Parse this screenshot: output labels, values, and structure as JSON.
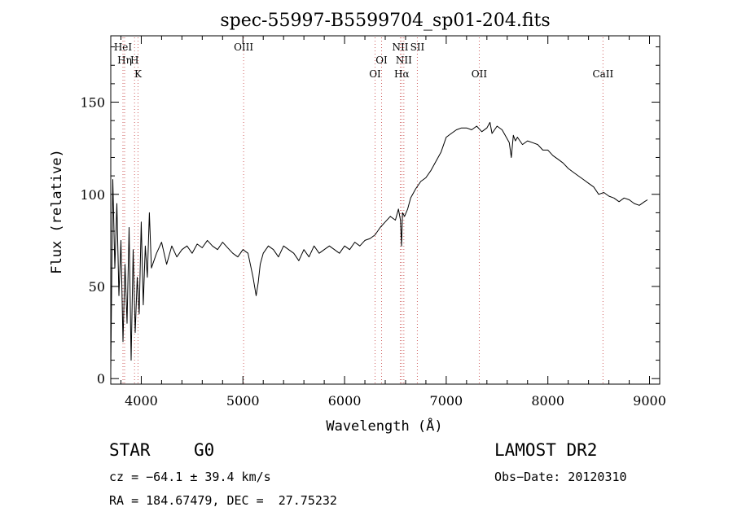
{
  "chart_data": {
    "type": "line",
    "title": "spec-55997-B5599704_sp01-204.fits",
    "xlabel": "Wavelength (Å)",
    "ylabel": "Flux (relative)",
    "xlim": [
      3700,
      9100
    ],
    "ylim": [
      -3,
      186
    ],
    "xticks": [
      4000,
      5000,
      6000,
      7000,
      8000,
      9000
    ],
    "yticks": [
      0,
      50,
      100,
      150
    ],
    "grid": false,
    "line_color": "#000000",
    "marker_color": "#d06060",
    "series": [
      {
        "x": [
          3700,
          3720,
          3740,
          3760,
          3780,
          3800,
          3820,
          3840,
          3860,
          3880,
          3900,
          3920,
          3940,
          3960,
          3980,
          4000,
          4020,
          4040,
          4060,
          4080,
          4100,
          4150,
          4200,
          4250,
          4300,
          4350,
          4400,
          4450,
          4500,
          4550,
          4600,
          4650,
          4700,
          4750,
          4800,
          4850,
          4900,
          4950,
          5000,
          5050,
          5100,
          5130,
          5150,
          5170,
          5200,
          5250,
          5300,
          5350,
          5400,
          5450,
          5500,
          5550,
          5600,
          5650,
          5700,
          5750,
          5800,
          5850,
          5900,
          5950,
          6000,
          6050,
          6100,
          6150,
          6200,
          6250,
          6300,
          6350,
          6400,
          6450,
          6500,
          6530,
          6550,
          6560,
          6570,
          6590,
          6620,
          6650,
          6700,
          6750,
          6800,
          6850,
          6900,
          6950,
          7000,
          7050,
          7100,
          7150,
          7200,
          7250,
          7300,
          7350,
          7400,
          7430,
          7450,
          7500,
          7550,
          7600,
          7620,
          7640,
          7660,
          7680,
          7700,
          7750,
          7800,
          7850,
          7900,
          7950,
          8000,
          8050,
          8100,
          8150,
          8200,
          8250,
          8300,
          8350,
          8400,
          8450,
          8500,
          8550,
          8600,
          8650,
          8700,
          8750,
          8800,
          8850,
          8900,
          8950,
          8980
        ],
        "y": [
          5,
          108,
          60,
          95,
          45,
          75,
          20,
          62,
          30,
          82,
          10,
          70,
          25,
          55,
          35,
          85,
          40,
          72,
          55,
          90,
          60,
          68,
          74,
          62,
          72,
          66,
          70,
          72,
          68,
          73,
          71,
          75,
          72,
          70,
          74,
          71,
          68,
          66,
          70,
          68,
          55,
          45,
          52,
          62,
          68,
          72,
          70,
          66,
          72,
          70,
          68,
          64,
          70,
          66,
          72,
          68,
          70,
          72,
          70,
          68,
          72,
          70,
          74,
          72,
          75,
          76,
          78,
          82,
          85,
          88,
          86,
          92,
          86,
          72,
          90,
          88,
          92,
          98,
          103,
          107,
          109,
          113,
          118,
          123,
          131,
          133,
          135,
          136,
          136,
          135,
          137,
          134,
          136,
          139,
          133,
          137,
          135,
          130,
          128,
          120,
          132,
          129,
          131,
          127,
          129,
          128,
          127,
          124,
          124,
          121,
          119,
          117,
          114,
          112,
          110,
          108,
          106,
          104,
          100,
          101,
          99,
          98,
          96,
          98,
          97,
          95,
          94,
          96,
          97
        ],
        "line_color": "#000000"
      }
    ],
    "lines": [
      {
        "name": "HeI",
        "x": 3820,
        "row": 1
      },
      {
        "name": "Hη",
        "x": 3836,
        "row": 2
      },
      {
        "name": "H",
        "x": 3934,
        "row": 2
      },
      {
        "name": "K",
        "x": 3968,
        "row": 3
      },
      {
        "name": "OIII",
        "x": 5007,
        "row": 1
      },
      {
        "name": "OI",
        "x": 6300,
        "row": 3
      },
      {
        "name": "OI",
        "x": 6364,
        "row": 2
      },
      {
        "name": "NII",
        "x": 6548,
        "row": 1
      },
      {
        "name": "NII",
        "x": 6583,
        "row": 2
      },
      {
        "name": "Hα",
        "x": 6563,
        "row": 3
      },
      {
        "name": "SII",
        "x": 6716,
        "row": 1
      },
      {
        "name": "OII",
        "x": 7325,
        "row": 3
      },
      {
        "name": "CaII",
        "x": 8542,
        "row": 3
      }
    ]
  },
  "info": {
    "class_label": "STAR",
    "subclass": "G0",
    "survey": "LAMOST DR2",
    "cz_text": "cz = −64.1 ± 39.4 km/s",
    "obs_date": "Obs−Date: 20120310",
    "coords": "RA = 184.67479, DEC =  27.75232"
  }
}
